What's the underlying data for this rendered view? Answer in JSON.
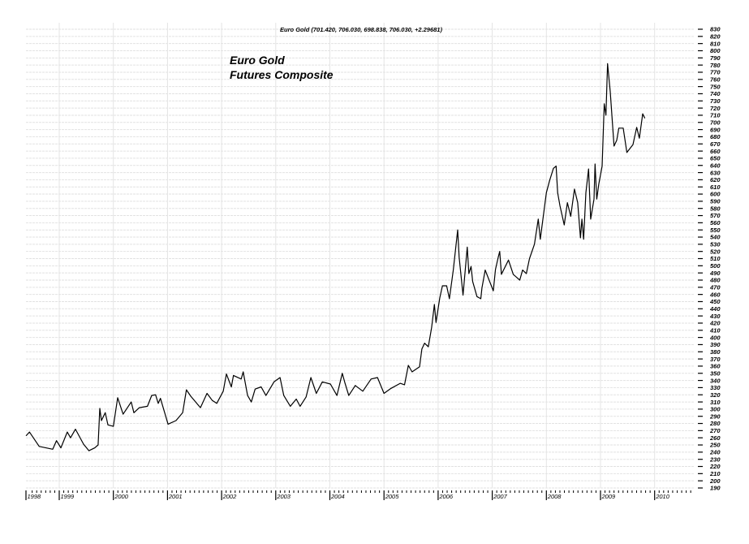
{
  "chart_data": {
    "type": "line",
    "title": "Euro Gold (701.420, 706.030, 698.838, 706.030, +2.29681)",
    "annotation": [
      "Euro Gold",
      "Futures Composite"
    ],
    "xlabel": "",
    "ylabel": "",
    "ylim": [
      190,
      830
    ],
    "ytick_step": 10,
    "y_axis_side": "right",
    "xlim": [
      "1998-05-21",
      "2010-12-31"
    ],
    "x_tick_labels": [
      "1998",
      "1999",
      "2000",
      "2001",
      "2002",
      "2003",
      "2004",
      "2005",
      "2006",
      "2007",
      "2008",
      "2009",
      "2010"
    ],
    "grid": true,
    "line_color": "#000000",
    "series": [
      {
        "x": [
          "1998-05-21",
          "1998-06-13",
          "1998-08-18",
          "1998-11-18",
          "1998-12-13",
          "1999-01-12",
          "1999-02-25",
          "1999-03-16",
          "1999-04-19",
          "1999-06-13",
          "1999-07-19",
          "1999-08-28",
          "1999-09-20",
          "1999-10-01",
          "1999-10-12",
          "1999-11-07",
          "1999-11-25",
          "2000-01-01",
          "2000-01-30",
          "2000-03-06",
          "2000-04-30",
          "2000-05-18",
          "2000-06-24",
          "2000-08-18",
          "2000-09-16",
          "2000-10-12",
          "2000-10-30",
          "2000-11-14",
          "2001-01-05",
          "2001-02-28",
          "2001-04-12",
          "2001-05-07",
          "2001-06-06",
          "2001-08-10",
          "2001-09-24",
          "2001-10-30",
          "2001-11-29",
          "2002-01-12",
          "2002-02-03",
          "2002-03-06",
          "2002-03-20",
          "2002-05-11",
          "2002-05-25",
          "2002-06-24",
          "2002-07-19",
          "2002-08-14",
          "2002-09-24",
          "2002-10-26",
          "2002-12-20",
          "2003-01-30",
          "2003-02-25",
          "2003-04-08",
          "2003-05-18",
          "2003-06-13",
          "2003-07-23",
          "2003-08-25",
          "2003-10-01",
          "2003-11-11",
          "2004-01-05",
          "2004-02-18",
          "2004-03-24",
          "2004-04-12",
          "2004-05-07",
          "2004-06-20",
          "2004-08-10",
          "2004-10-05",
          "2004-11-18",
          "2005-01-01",
          "2005-02-18",
          "2005-04-19",
          "2005-05-18",
          "2005-06-13",
          "2005-07-08",
          "2005-08-28",
          "2005-09-13",
          "2005-10-01",
          "2005-10-26",
          "2005-11-18",
          "2005-12-06",
          "2005-12-17",
          "2006-01-12",
          "2006-01-30",
          "2006-02-28",
          "2006-03-16",
          "2006-04-12",
          "2006-05-11",
          "2006-05-21",
          "2006-06-17",
          "2006-07-15",
          "2006-07-26",
          "2006-08-10",
          "2006-08-21",
          "2006-09-20",
          "2006-10-15",
          "2006-10-23",
          "2006-11-14",
          "2007-01-08",
          "2007-01-23",
          "2007-02-11",
          "2007-02-21",
          "2007-03-02",
          "2007-04-19",
          "2007-05-21",
          "2007-07-04",
          "2007-07-23",
          "2007-08-18",
          "2007-09-09",
          "2007-10-12",
          "2007-11-07",
          "2007-11-21",
          "2008-01-01",
          "2008-01-23",
          "2008-02-18",
          "2008-03-06",
          "2008-03-16",
          "2008-04-01",
          "2008-04-30",
          "2008-05-21",
          "2008-06-13",
          "2008-07-08",
          "2008-07-30",
          "2008-08-18",
          "2008-08-28",
          "2008-09-09",
          "2008-09-24",
          "2008-10-12",
          "2008-10-26",
          "2008-11-18",
          "2008-11-25",
          "2008-12-06",
          "2008-12-20",
          "2009-01-12",
          "2009-01-26",
          "2009-02-07",
          "2009-02-18",
          "2009-03-06",
          "2009-04-01",
          "2009-04-19",
          "2009-05-03",
          "2009-06-02",
          "2009-06-27",
          "2009-08-07",
          "2009-09-02",
          "2009-09-20",
          "2009-10-12",
          "2009-10-26"
        ],
        "values": [
          263,
          268,
          248,
          244,
          256,
          246,
          268,
          260,
          272,
          251,
          242,
          246,
          250,
          301,
          284,
          295,
          278,
          276,
          316,
          293,
          310,
          295,
          302,
          304,
          319,
          320,
          308,
          315,
          279,
          284,
          295,
          327,
          318,
          302,
          322,
          312,
          308,
          325,
          349,
          331,
          347,
          342,
          352,
          319,
          310,
          328,
          331,
          319,
          338,
          344,
          319,
          304,
          314,
          304,
          317,
          344,
          322,
          338,
          335,
          319,
          350,
          336,
          319,
          333,
          325,
          342,
          344,
          322,
          329,
          336,
          334,
          361,
          352,
          359,
          384,
          392,
          387,
          414,
          446,
          421,
          455,
          472,
          472,
          454,
          494,
          550,
          512,
          459,
          526,
          489,
          499,
          478,
          457,
          454,
          469,
          494,
          465,
          495,
          512,
          520,
          488,
          508,
          488,
          480,
          494,
          489,
          510,
          530,
          565,
          537,
          602,
          619,
          636,
          639,
          602,
          584,
          557,
          588,
          569,
          607,
          588,
          539,
          565,
          537,
          602,
          635,
          565,
          593,
          642,
          593,
          614,
          639,
          726,
          710,
          782,
          743,
          667,
          675,
          692,
          692,
          658,
          669,
          693,
          678,
          712,
          706
        ]
      }
    ]
  }
}
